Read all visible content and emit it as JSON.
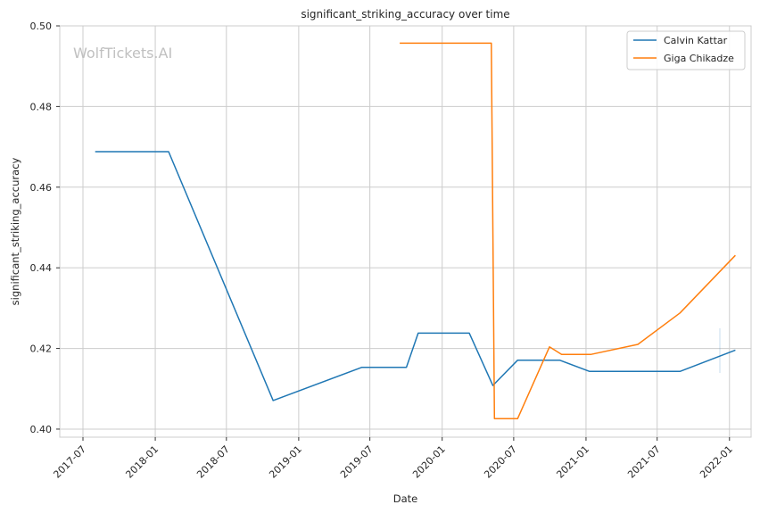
{
  "chart_data": {
    "type": "line",
    "title": "significant_striking_accuracy over time",
    "xlabel": "Date",
    "ylabel": "significant_striking_accuracy",
    "watermark": "WolfTickets.AI",
    "x_ticks": [
      "2017-07",
      "2018-01",
      "2018-07",
      "2019-01",
      "2019-07",
      "2020-01",
      "2020-07",
      "2021-01",
      "2021-07",
      "2022-01"
    ],
    "y_ticks": [
      "0.40",
      "0.42",
      "0.44",
      "0.46",
      "0.48",
      "0.50"
    ],
    "xlim": [
      "2017-05-03",
      "2022-02-25"
    ],
    "ylim": [
      0.398,
      0.5
    ],
    "grid": true,
    "legend_position": "top-right",
    "series": [
      {
        "name": "Calvin Kattar",
        "color": "#1f77b4",
        "points": [
          [
            "2017-08-01",
            0.4688
          ],
          [
            "2018-02-04",
            0.4688
          ],
          [
            "2018-10-28",
            0.4071
          ],
          [
            "2019-06-10",
            0.4153
          ],
          [
            "2019-10-02",
            0.4153
          ],
          [
            "2019-11-01",
            0.4238
          ],
          [
            "2020-03-10",
            0.4238
          ],
          [
            "2020-05-09",
            0.4108
          ],
          [
            "2020-07-11",
            0.4171
          ],
          [
            "2020-10-26",
            0.4171
          ],
          [
            "2021-01-10",
            0.4143
          ],
          [
            "2021-08-28",
            0.4143
          ],
          [
            "2022-01-16",
            0.4196
          ]
        ]
      },
      {
        "name": "Giga Chikadze",
        "color": "#ff7f0e",
        "points": [
          [
            "2019-09-15",
            0.4957
          ],
          [
            "2020-05-05",
            0.4957
          ],
          [
            "2020-05-13",
            0.4026
          ],
          [
            "2020-07-11",
            0.4026
          ],
          [
            "2020-09-30",
            0.4204
          ],
          [
            "2020-10-31",
            0.4185
          ],
          [
            "2021-01-13",
            0.4185
          ],
          [
            "2021-05-13",
            0.421
          ],
          [
            "2021-08-28",
            0.4288
          ],
          [
            "2022-01-16",
            0.4431
          ]
        ]
      }
    ]
  }
}
